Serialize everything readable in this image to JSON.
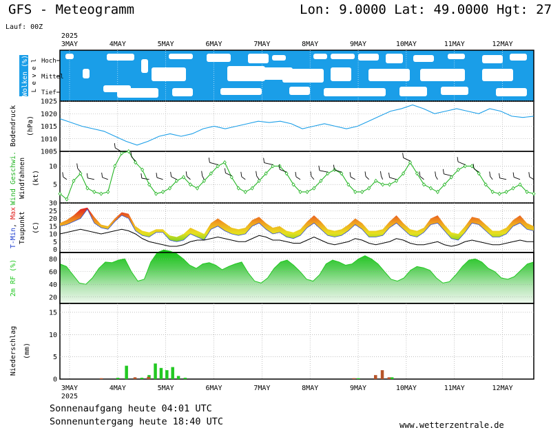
{
  "header": {
    "title": "GFS - Meteogramm",
    "coords": "Lon: 9.0000 Lat: 49.0000 Hgt: 27",
    "lauf": "Lauf: 00Z"
  },
  "footer": {
    "sunrise": "Sonnenaufgang heute 04:01 UTC",
    "sunset": "Sonnenuntergang heute 18:40 UTC",
    "source": "www.wetterzentrale.de"
  },
  "colors": {
    "cloud_blue": "#1a9ee8",
    "pressure_line": "#1a9ee8",
    "wind_line": "#22b422",
    "tmin_label": "#1f3fd0",
    "tmax_label": "#e0201e",
    "rh_green": "#22c822",
    "precip_rain": "#22c822",
    "precip_conv": "#b8552a"
  },
  "chart_data": [
    {
      "type": "area",
      "panel": "clouds",
      "ylabel": "Wolken (%)",
      "level_label": "L e v e l",
      "levels": [
        "Hoch",
        "Mittel",
        "Tief"
      ],
      "x_dates": [
        "3MAY",
        "4MAY",
        "5MAY",
        "6MAY",
        "7MAY",
        "8MAY",
        "9MAY",
        "10MAY",
        "11MAY",
        "12MAY"
      ],
      "year": "2025"
    },
    {
      "type": "line",
      "panel": "pressure",
      "ylabel": "Bodendruck",
      "unit": "(hPa)",
      "ylim": [
        1005,
        1025
      ],
      "yticks": [
        1005,
        1010,
        1015,
        1020,
        1025
      ],
      "values": [
        1018,
        1016.5,
        1015,
        1014,
        1013,
        1011,
        1009,
        1007.5,
        1009,
        1011,
        1012,
        1011,
        1012,
        1014,
        1015,
        1014,
        1015,
        1016,
        1017,
        1016.5,
        1017,
        1016,
        1014,
        1015,
        1016,
        1015,
        1014,
        1015,
        1017,
        1019,
        1021,
        1022,
        1023.5,
        1022,
        1020,
        1021,
        1022,
        1021,
        1020,
        1022,
        1021,
        1019,
        1018.5,
        1019
      ]
    },
    {
      "type": "line",
      "panel": "wind",
      "ylabel_wind": "Wind Geschwi.",
      "ylabel_barbs": "Windfahnen",
      "unit": "(kt)",
      "ylim": [
        0,
        14
      ],
      "yticks": [
        5,
        10
      ],
      "values": [
        2.5,
        1,
        6,
        8,
        4,
        3,
        2.5,
        3,
        10,
        13.5,
        14,
        11,
        9,
        5,
        2.5,
        3,
        4,
        6,
        7,
        5,
        4,
        6,
        8,
        10,
        11,
        7,
        4,
        3,
        4,
        6,
        8,
        10,
        10,
        8,
        5,
        3,
        3,
        4,
        6,
        8,
        9,
        8,
        5,
        3,
        3,
        4,
        6,
        5,
        5,
        6,
        8,
        11,
        8,
        5,
        4,
        3,
        5,
        7,
        9,
        10,
        10,
        8,
        5,
        3,
        2.5,
        3,
        4,
        5,
        3,
        2.5
      ]
    },
    {
      "type": "area",
      "panel": "temperature",
      "ylabel_tmin": "T-Min",
      "ylabel_tmax": "Max",
      "ylabel_dew": "Taupunkt",
      "unit": "(C)",
      "ylim": [
        -2,
        30
      ],
      "yticks": [
        0,
        5,
        10,
        15,
        20,
        25,
        30
      ],
      "series": [
        {
          "name": "T-Min",
          "values": [
            15,
            16,
            18,
            20,
            26,
            17,
            14,
            13,
            18,
            22,
            20,
            12,
            9,
            8,
            11,
            11,
            6,
            5,
            6,
            10,
            8,
            6,
            13,
            15,
            12,
            10,
            9,
            10,
            15,
            17,
            13,
            10,
            11,
            8,
            7,
            9,
            14,
            17,
            13,
            9,
            8,
            9,
            12,
            16,
            13,
            8,
            8,
            9,
            14,
            17,
            13,
            9,
            8,
            11,
            16,
            17,
            12,
            7,
            6,
            11,
            17,
            16,
            12,
            8,
            8,
            10,
            15,
            17,
            13,
            12
          ]
        },
        {
          "name": "Max",
          "values": [
            17,
            19,
            22,
            26,
            27,
            21,
            16,
            15,
            20,
            24,
            23,
            15,
            12,
            11,
            13,
            13,
            9,
            8,
            10,
            14,
            12,
            10,
            17,
            20,
            17,
            14,
            13,
            14,
            19,
            21,
            17,
            14,
            15,
            12,
            11,
            13,
            18,
            22,
            18,
            13,
            12,
            13,
            16,
            20,
            17,
            12,
            12,
            13,
            18,
            22,
            17,
            13,
            12,
            14,
            20,
            22,
            16,
            11,
            10,
            15,
            21,
            20,
            16,
            12,
            12,
            14,
            19,
            22,
            17,
            15
          ]
        },
        {
          "name": "Taupunkt",
          "values": [
            10,
            11,
            12,
            13,
            12,
            11,
            10,
            11,
            12,
            13,
            12,
            10,
            7,
            5,
            4,
            3,
            2,
            2,
            3,
            5,
            6,
            6,
            7,
            8,
            7,
            6,
            5,
            5,
            7,
            9,
            8,
            6,
            6,
            5,
            4,
            4,
            6,
            8,
            6,
            4,
            3,
            4,
            5,
            7,
            6,
            4,
            3,
            4,
            5,
            7,
            6,
            4,
            3,
            3,
            4,
            5,
            3,
            2,
            3,
            5,
            6,
            5,
            4,
            3,
            3,
            4,
            5,
            6,
            5,
            5
          ]
        }
      ]
    },
    {
      "type": "area",
      "panel": "humidity",
      "ylabel": "2m RF (%)",
      "ylim": [
        10,
        90
      ],
      "yticks": [
        20,
        40,
        60,
        80
      ],
      "values": [
        72,
        68,
        55,
        42,
        40,
        50,
        65,
        75,
        74,
        78,
        80,
        60,
        45,
        48,
        75,
        90,
        94,
        92,
        88,
        80,
        70,
        65,
        72,
        74,
        70,
        63,
        68,
        72,
        75,
        58,
        45,
        42,
        50,
        65,
        75,
        78,
        70,
        60,
        48,
        45,
        55,
        72,
        78,
        75,
        70,
        72,
        80,
        85,
        80,
        72,
        60,
        48,
        45,
        50,
        62,
        68,
        66,
        62,
        50,
        42,
        44,
        55,
        68,
        78,
        80,
        75,
        65,
        60,
        50,
        48,
        52,
        62,
        72,
        75
      ]
    },
    {
      "type": "bar",
      "panel": "precipitation",
      "ylabel": "Niederschlag",
      "unit": "(mm)",
      "ylim": [
        0,
        17
      ],
      "yticks": [
        0,
        5,
        10,
        15
      ],
      "series": [
        {
          "name": "",
          "bars": [
            [
              1.2,
              0.3
            ],
            [
              1.38,
              3
            ],
            [
              1.7,
              0.3
            ],
            [
              1.85,
              0.9
            ],
            [
              1.98,
              3.5
            ],
            [
              2.1,
              2.5
            ],
            [
              2.22,
              2
            ],
            [
              2.34,
              2.7
            ],
            [
              2.46,
              0.7
            ],
            [
              2.6,
              0.3
            ],
            [
              6.2,
              0.2
            ],
            [
              6.9,
              0.4
            ]
          ]
        },
        {
          "name": "",
          "bars": [
            [
              0.8,
              0.2
            ],
            [
              1.5,
              0.4
            ],
            [
              1.78,
              0.5
            ],
            [
              6.05,
              0.2
            ],
            [
              6.5,
              0.9
            ],
            [
              6.64,
              2
            ],
            [
              6.78,
              0.4
            ]
          ]
        }
      ]
    }
  ]
}
